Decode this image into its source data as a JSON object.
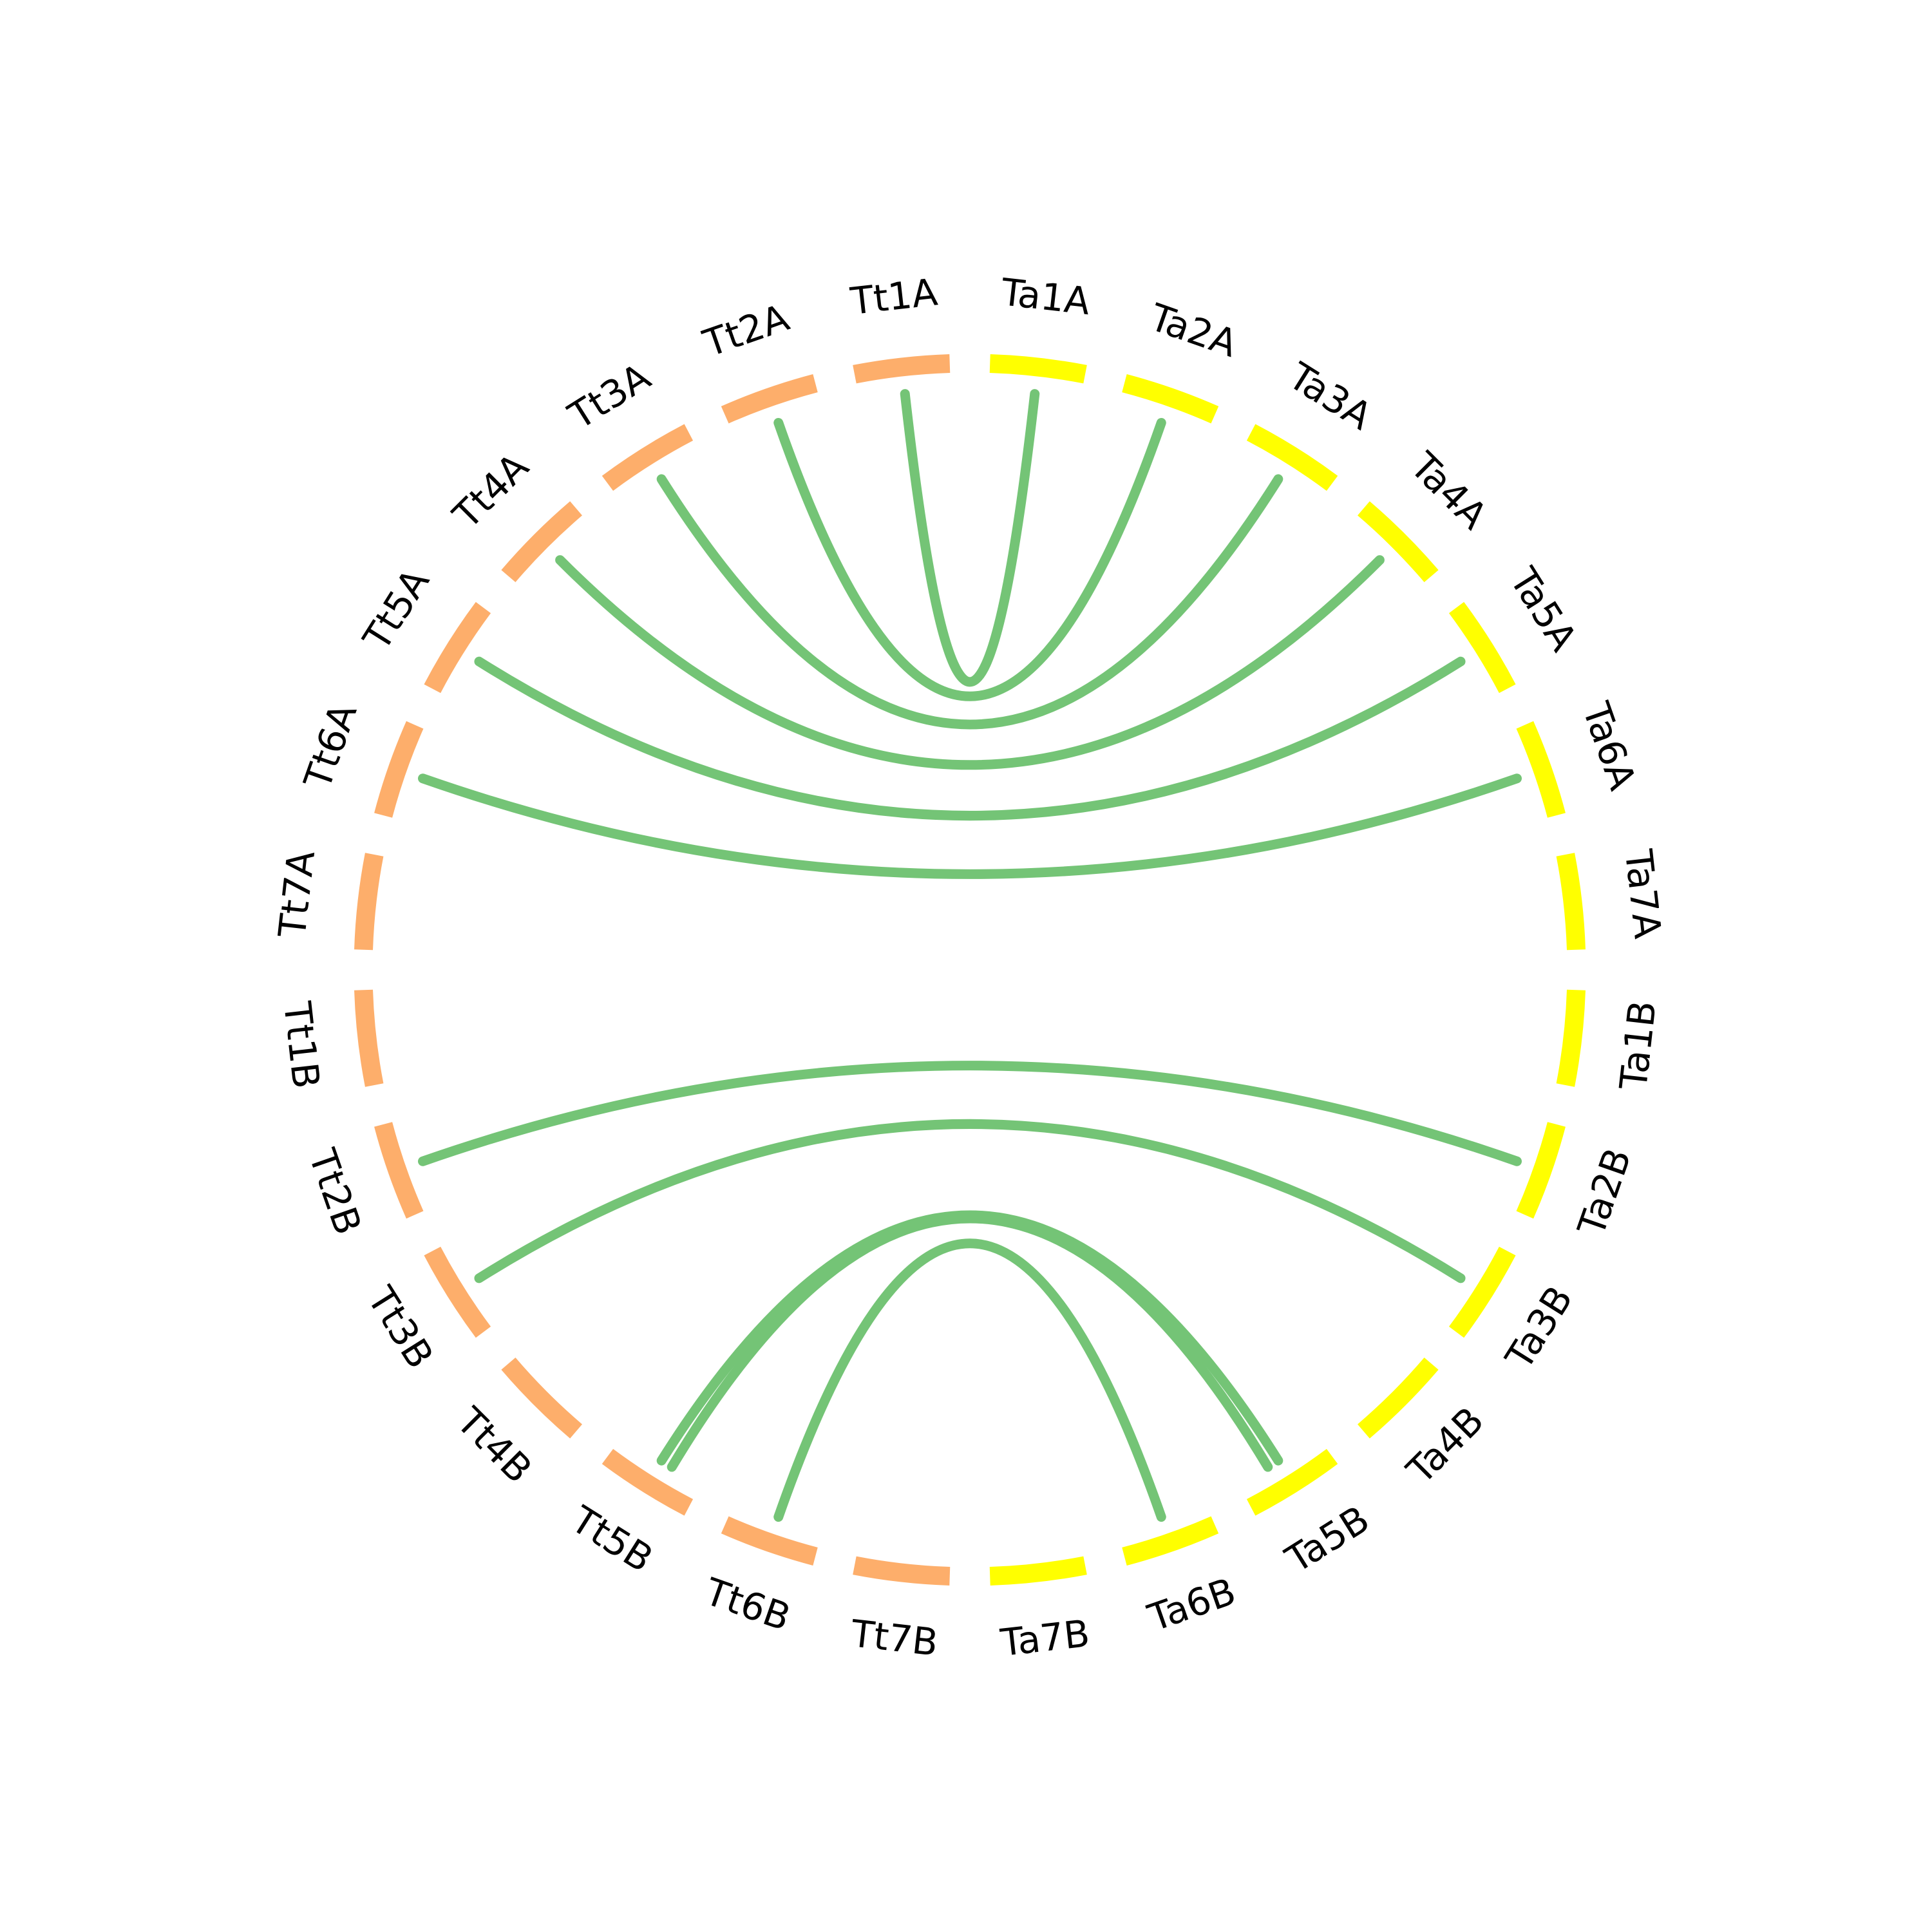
{
  "nodes": [
    {
      "label": "Ta1A",
      "color": "#ffff00"
    },
    {
      "label": "Ta2A",
      "color": "#ffff00"
    },
    {
      "label": "Ta3A",
      "color": "#ffff00"
    },
    {
      "label": "Ta4A",
      "color": "#ffff00"
    },
    {
      "label": "Ta5A",
      "color": "#ffff00"
    },
    {
      "label": "Ta6A",
      "color": "#ffff00"
    },
    {
      "label": "Ta7A",
      "color": "#ffff00"
    },
    {
      "label": "Ta1B",
      "color": "#ffff00"
    },
    {
      "label": "Ta2B",
      "color": "#ffff00"
    },
    {
      "label": "Ta3B",
      "color": "#ffff00"
    },
    {
      "label": "Ta4B",
      "color": "#ffff00"
    },
    {
      "label": "Ta5B",
      "color": "#ffff00"
    },
    {
      "label": "Ta6B",
      "color": "#ffff00"
    },
    {
      "label": "Ta7B",
      "color": "#ffff00"
    },
    {
      "label": "Tt7B",
      "color": "#fdae6b"
    },
    {
      "label": "Tt6B",
      "color": "#fdae6b"
    },
    {
      "label": "Tt5B",
      "color": "#fdae6b"
    },
    {
      "label": "Tt4B",
      "color": "#fdae6b"
    },
    {
      "label": "Tt3B",
      "color": "#fdae6b"
    },
    {
      "label": "Tt2B",
      "color": "#fdae6b"
    },
    {
      "label": "Tt1B",
      "color": "#fdae6b"
    },
    {
      "label": "Tt7A",
      "color": "#fdae6b"
    },
    {
      "label": "Tt6A",
      "color": "#fdae6b"
    },
    {
      "label": "Tt5A",
      "color": "#fdae6b"
    },
    {
      "label": "Tt4A",
      "color": "#fdae6b"
    },
    {
      "label": "Tt3A",
      "color": "#fdae6b"
    },
    {
      "label": "Tt2A",
      "color": "#fdae6b"
    },
    {
      "label": "Tt1A",
      "color": "#fdae6b"
    }
  ],
  "link_color": "#74c476",
  "links": [
    {
      "source": 27,
      "target": 0
    },
    {
      "source": 26,
      "target": 1
    },
    {
      "source": 25,
      "target": 2
    },
    {
      "source": 24,
      "target": 3
    },
    {
      "source": 23,
      "target": 4
    },
    {
      "source": 22,
      "target": 5
    },
    {
      "source": 19,
      "target": 8
    },
    {
      "source": 18,
      "target": 9
    },
    {
      "source": 16,
      "target": 11
    },
    {
      "source": 16,
      "target": 11
    },
    {
      "source": 15,
      "target": 12
    }
  ]
}
